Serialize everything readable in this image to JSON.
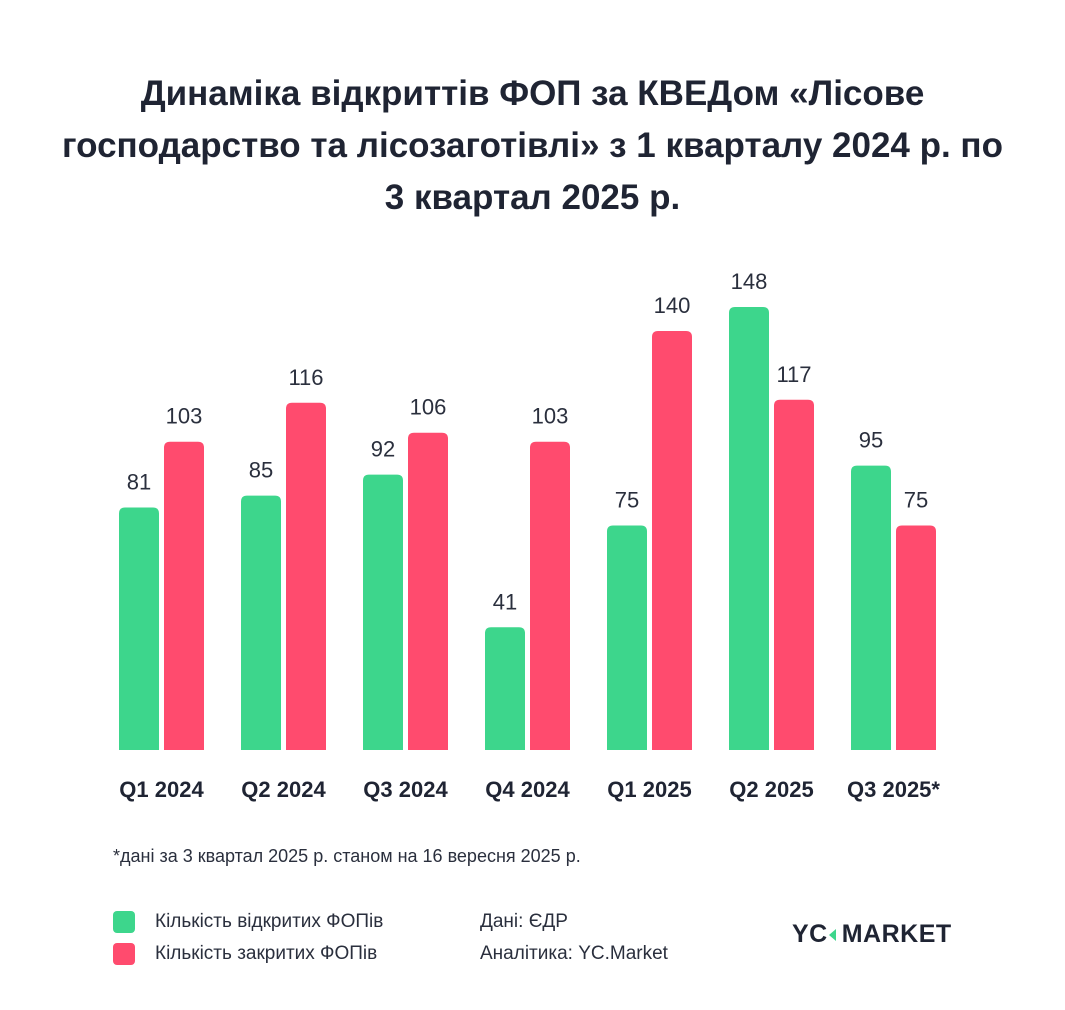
{
  "chart_data": {
    "type": "bar",
    "title": "Динаміка відкриттів ФОП за КВЕДом «Лісове господарство та лісозаготівлі» з 1 кварталу 2024 р. по 3 квартал 2025 р.",
    "categories": [
      "Q1 2024",
      "Q2 2024",
      "Q3 2024",
      "Q4 2024",
      "Q1 2025",
      "Q2 2025",
      "Q3 2025*"
    ],
    "series": [
      {
        "name": "Кількість відкритих ФОПів",
        "color": "#3dd68c",
        "values": [
          81,
          85,
          92,
          41,
          75,
          148,
          95
        ]
      },
      {
        "name": "Кількість закритих ФОПів",
        "color": "#ff4b6e",
        "values": [
          103,
          116,
          106,
          103,
          140,
          117,
          75
        ]
      }
    ],
    "ylim": [
      0,
      150
    ],
    "grid": false,
    "data_labels": true,
    "legend_placement": "bottom-left",
    "footnote": "*дані за 3 квартал 2025 р. станом на 16 вересня 2025 р."
  },
  "source": {
    "data": "Дані: ЄДР",
    "analytics": "Аналітика: YC.Market"
  },
  "logo": {
    "left": "YC",
    "right": "MARKET"
  }
}
